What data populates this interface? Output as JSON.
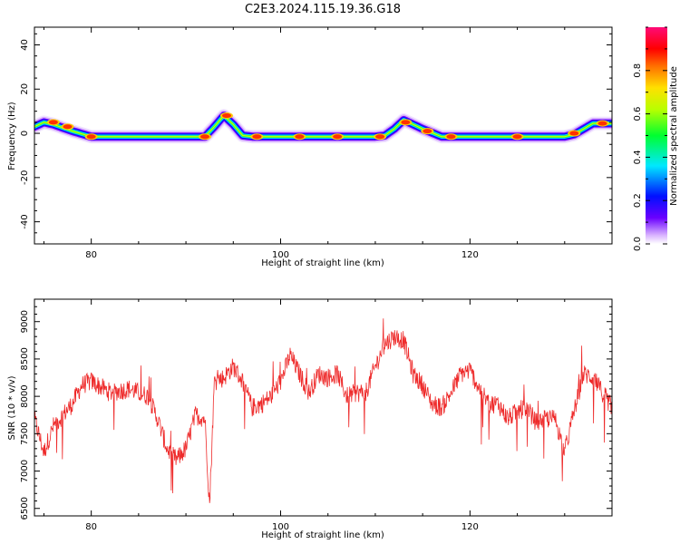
{
  "title": "C2E3.2024.115.19.36.G18",
  "colors": {
    "line": "#ee2a2a",
    "axes": "#000000"
  },
  "chart_data": [
    {
      "type": "heatmap",
      "xlabel": "Height of straight line (km)",
      "ylabel": "Frequency (Hz)",
      "xlim": [
        74,
        135
      ],
      "ylim": [
        -50,
        48
      ],
      "xticks": [
        80,
        100,
        120
      ],
      "yticks": [
        40,
        20,
        0,
        -20,
        -40
      ],
      "colorbar": {
        "label": "Normalized spectral amplitude",
        "range": [
          0,
          1
        ],
        "ticks": [
          0.0,
          0.2,
          0.4,
          0.6,
          0.8
        ],
        "colormap": "rainbow (white-violet-blue-cyan-green-yellow-red-magenta)"
      },
      "ridge": {
        "x": [
          74,
          75,
          76,
          78,
          80,
          85,
          90,
          92,
          93,
          94,
          95,
          96,
          97,
          100,
          105,
          110,
          111,
          112,
          113,
          114,
          115,
          117,
          120,
          125,
          130,
          131,
          132,
          133,
          134
        ],
        "y": [
          3,
          5,
          4,
          1,
          -1.5,
          -1.5,
          -1.5,
          -1.5,
          3,
          8,
          4,
          -1,
          -1.5,
          -1.5,
          -1.5,
          -1.5,
          -1,
          2,
          6,
          4,
          2,
          -1.5,
          -1.5,
          -1.5,
          -1.5,
          -0.5,
          2,
          4.5,
          4.5
        ]
      },
      "peaks": {
        "x": [
          76,
          77.5,
          80,
          92,
          94.3,
          97.5,
          102,
          106,
          110.5,
          113.2,
          115.5,
          118,
          125,
          131,
          134
        ],
        "y": [
          5,
          3,
          -1.5,
          -1.5,
          8,
          -1.5,
          -1.5,
          -1.5,
          -1.5,
          5,
          1,
          -1.5,
          -1.5,
          0,
          4.5
        ]
      }
    },
    {
      "type": "line",
      "xlabel": "Height of straight line (km)",
      "ylabel": "SNR (10 * v/v)",
      "xlim": [
        74,
        135
      ],
      "ylim": [
        6400,
        9300
      ],
      "xticks": [
        80,
        100,
        120
      ],
      "yticks": [
        6500,
        7000,
        7500,
        8000,
        8500,
        9000
      ],
      "series": [
        {
          "x": [
            74,
            75,
            76,
            77,
            78,
            79,
            80,
            82,
            84,
            86,
            87,
            88,
            89,
            90,
            91,
            92,
            92.5,
            93,
            94,
            95,
            96,
            97,
            98,
            99,
            100,
            101,
            102,
            103,
            104,
            105,
            106,
            107,
            108,
            109,
            110,
            111,
            112,
            113,
            114,
            115,
            116,
            117,
            118,
            119,
            120,
            121,
            122,
            123,
            124,
            125,
            126,
            127,
            128,
            129,
            130,
            131,
            132,
            133,
            134,
            135
          ],
          "y": [
            7700,
            7250,
            7600,
            7750,
            7900,
            8150,
            8200,
            8050,
            8100,
            8000,
            7700,
            7300,
            7150,
            7300,
            7750,
            7700,
            6550,
            8200,
            8250,
            8400,
            8200,
            7850,
            7900,
            8000,
            8200,
            8550,
            8300,
            8050,
            8300,
            8250,
            8300,
            8000,
            8050,
            8050,
            8400,
            8700,
            8800,
            8750,
            8300,
            8150,
            7900,
            7850,
            8050,
            8300,
            8350,
            8100,
            7900,
            7900,
            7700,
            7800,
            7850,
            7650,
            7700,
            7700,
            7250,
            7800,
            8300,
            8250,
            8050,
            7850
          ]
        }
      ]
    }
  ]
}
